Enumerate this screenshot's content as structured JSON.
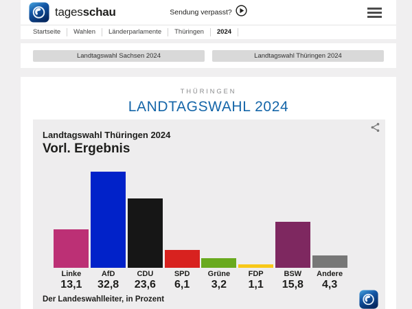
{
  "header": {
    "brand": {
      "tages": "tages",
      "schau": "schau"
    },
    "sendung_verpasst": "Sendung verpasst?",
    "breadcrumb": [
      "Startseite",
      "Wahlen",
      "Länderparlamente",
      "Thüringen",
      "2024"
    ]
  },
  "tabs": [
    {
      "label": "Landtagswahl Sachsen 2024"
    },
    {
      "label": "Landtagswahl Thüringen 2024"
    }
  ],
  "page": {
    "kicker": "THÜRINGEN",
    "title": "LANDTAGSWAHL 2024"
  },
  "icons": {
    "brand": "globe-logo",
    "play": "play-icon",
    "menu": "hamburger-icon",
    "share": "share-icon"
  },
  "colors": {
    "accent_blue": "#1465a8",
    "chart_bg": "#eeedee",
    "tab_bg": "#d9d9d9"
  },
  "chart_data": {
    "type": "bar",
    "title": "Landtagswahl Thüringen 2024",
    "subtitle": "Vorl. Ergebnis",
    "source": "Der Landeswahlleiter, in Prozent",
    "unit": "Prozent",
    "categories": [
      "Linke",
      "AfD",
      "CDU",
      "SPD",
      "Grüne",
      "FDP",
      "BSW",
      "Andere"
    ],
    "values": [
      13.1,
      32.8,
      23.6,
      6.1,
      3.2,
      1.1,
      15.8,
      4.3
    ],
    "value_labels": [
      "13,1",
      "32,8",
      "23,6",
      "6,1",
      "3,2",
      "1,1",
      "15,8",
      "4,3"
    ],
    "colors": [
      "#bc3075",
      "#0122c9",
      "#161616",
      "#d8221f",
      "#69aa1e",
      "#f8c818",
      "#7e2860",
      "#777777"
    ],
    "ylim": [
      0,
      33
    ],
    "grid": false,
    "legend": "none"
  }
}
